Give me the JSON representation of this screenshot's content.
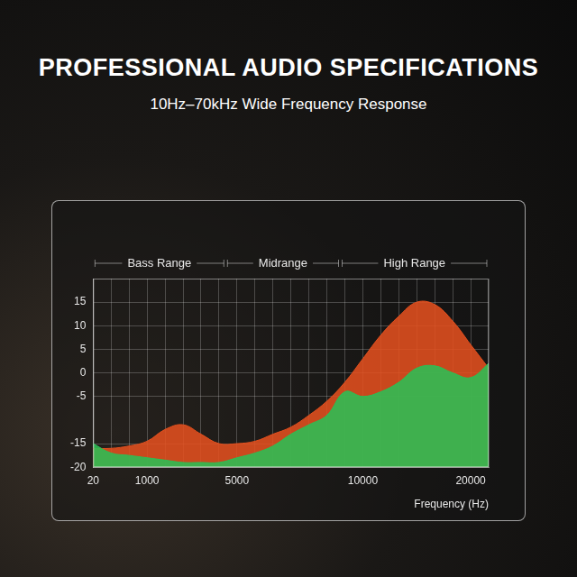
{
  "chart_data": {
    "type": "area",
    "title": "PROFESSIONAL AUDIO SPECIFICATIONS",
    "subtitle": "10Hz–70kHz Wide Frequency Response",
    "annotations": [
      "Bass Range",
      "Midrange",
      "High Range"
    ],
    "x_label": "Frequency (Hz)",
    "categories": [
      "20",
      null,
      null,
      "1000",
      null,
      null,
      null,
      null,
      "5000",
      null,
      null,
      null,
      null,
      null,
      null,
      "10000",
      null,
      null,
      null,
      null,
      null,
      "20000",
      null
    ],
    "series": [
      {
        "color": "#e2501f",
        "values": [
          -16,
          -16,
          -15.5,
          -14.5,
          -12,
          -11,
          -13,
          -15,
          -15,
          -14.5,
          -13,
          -11.5,
          -9,
          -6,
          -2,
          3,
          8,
          12,
          15,
          14.5,
          11,
          6,
          1
        ]
      },
      {
        "color": "#2cbf55",
        "values": [
          -15,
          -17,
          -17.5,
          -18,
          -18.5,
          -19,
          -19,
          -19,
          -18,
          -17,
          -15.5,
          -13,
          -11,
          -9,
          -4,
          -5,
          -4,
          -2,
          1,
          1.5,
          0,
          -1,
          2
        ]
      }
    ],
    "ylim": [
      -20,
      20
    ],
    "yticks": [
      15,
      10,
      5,
      0,
      -5,
      -15,
      -20
    ],
    "grid": true
  }
}
